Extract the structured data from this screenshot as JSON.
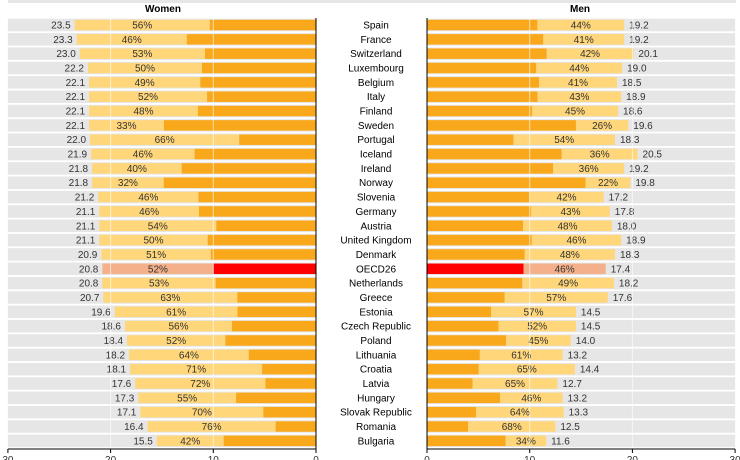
{
  "chart_data": {
    "type": "bar",
    "panels": [
      {
        "title": "Women",
        "xlim": [
          0,
          30
        ],
        "ticks": [
          "30",
          "20",
          "10",
          "0"
        ],
        "direction": "left"
      },
      {
        "title": "Men",
        "xlim": [
          0,
          30
        ],
        "ticks": [
          "0",
          "10",
          "20",
          "30"
        ],
        "direction": "right"
      }
    ],
    "categories": [
      "Spain",
      "France",
      "Switzerland",
      "Luxembourg",
      "Belgium",
      "Italy",
      "Finland",
      "Sweden",
      "Portugal",
      "Iceland",
      "Ireland",
      "Norway",
      "Slovenia",
      "Germany",
      "Austria",
      "United Kingdom",
      "Denmark",
      "OECD26",
      "Netherlands",
      "Greece",
      "Estonia",
      "Czech Republic",
      "Poland",
      "Lithuania",
      "Croatia",
      "Latvia",
      "Hungary",
      "Slovak Republic",
      "Romania",
      "Bulgaria"
    ],
    "highlight": "OECD26",
    "women_values": [
      23.5,
      23.3,
      23.0,
      22.2,
      22.1,
      22.1,
      22.1,
      22.1,
      22.0,
      21.9,
      21.8,
      21.8,
      21.2,
      21.1,
      21.1,
      21.1,
      20.9,
      20.8,
      20.8,
      20.7,
      19.6,
      18.6,
      18.4,
      18.2,
      18.1,
      17.6,
      17.3,
      17.1,
      16.4,
      15.5
    ],
    "women_value_labels": [
      "23.5",
      "23.3",
      "23.0",
      "22.2",
      "22.1",
      "22.1",
      "22.1",
      "22.1",
      "22.0",
      "21.9",
      "21.8",
      "21.8",
      "21.2",
      "21.1",
      "21.1",
      "21.1",
      "20.9",
      "20.8",
      "20.8",
      "20.7",
      "19.6",
      "18.6",
      "18.4",
      "18.2",
      "18.1",
      "17.6",
      "17.3",
      "17.1",
      "16.4",
      "15.5"
    ],
    "women_share_pct": [
      56,
      46,
      53,
      50,
      49,
      52,
      48,
      33,
      66,
      46,
      40,
      32,
      46,
      46,
      54,
      50,
      51,
      52,
      53,
      63,
      61,
      56,
      52,
      64,
      71,
      72,
      55,
      70,
      76,
      42
    ],
    "men_values": [
      19.2,
      19.2,
      20.1,
      19.0,
      18.5,
      18.9,
      18.6,
      19.6,
      18.3,
      20.5,
      19.2,
      19.8,
      17.2,
      17.8,
      18.0,
      18.9,
      18.3,
      17.4,
      18.2,
      17.6,
      14.5,
      14.5,
      14.0,
      13.2,
      14.4,
      12.7,
      13.2,
      13.3,
      12.5,
      11.6
    ],
    "men_value_labels": [
      "19.2",
      "19.2",
      "20.1",
      "19.0",
      "18.5",
      "18.9",
      "18.6",
      "19.6",
      "18.3",
      "20.5",
      "19.2",
      "19.8",
      "17.2",
      "17.8",
      "18.0",
      "18.9",
      "18.3",
      "17.4",
      "18.2",
      "17.6",
      "14.5",
      "14.5",
      "14.0",
      "13.2",
      "14.4",
      "12.7",
      "13.2",
      "13.3",
      "12.5",
      "11.6"
    ],
    "men_share_pct": [
      44,
      41,
      42,
      44,
      41,
      43,
      45,
      26,
      54,
      36,
      36,
      22,
      42,
      43,
      48,
      46,
      48,
      46,
      49,
      57,
      57,
      52,
      45,
      61,
      65,
      65,
      46,
      64,
      68,
      34
    ],
    "colors": {
      "share": "#FFD67A",
      "rest": "#F9A81C",
      "highlight_share": "#F4B08A",
      "highlight_rest": "#FF0000",
      "row_bg": "#E6E6E6"
    }
  }
}
